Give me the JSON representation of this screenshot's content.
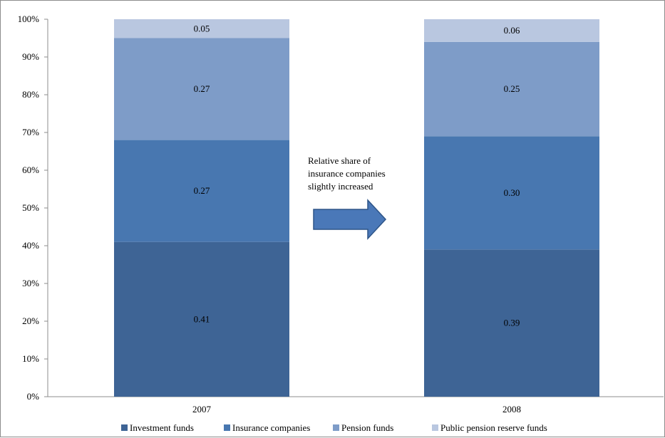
{
  "chart_data": {
    "type": "bar",
    "stacked": "percent",
    "title": "",
    "xlabel": "",
    "ylabel": "",
    "ylim": [
      0,
      100
    ],
    "yticks": [
      "0%",
      "10%",
      "20%",
      "30%",
      "40%",
      "50%",
      "60%",
      "70%",
      "80%",
      "90%",
      "100%"
    ],
    "categories": [
      "2007",
      "2008"
    ],
    "series": [
      {
        "name": "Investment funds",
        "values": [
          0.41,
          0.39
        ],
        "labels": [
          "0.41",
          "0.39"
        ],
        "color": "#3e6495"
      },
      {
        "name": "Insurance companies",
        "values": [
          0.27,
          0.3
        ],
        "labels": [
          "0.27",
          "0.30"
        ],
        "color": "#4877b0"
      },
      {
        "name": "Pension funds",
        "values": [
          0.27,
          0.25
        ],
        "labels": [
          "0.27",
          "0.25"
        ],
        "color": "#7e9cc8"
      },
      {
        "name": "Public pension reserve funds",
        "values": [
          0.05,
          0.06
        ],
        "labels": [
          "0.05",
          "0.06"
        ],
        "color": "#b9c7e0"
      }
    ],
    "annotation": {
      "lines": [
        "Relative share of",
        "insurance companies",
        "slightly increased"
      ]
    },
    "legend_position": "bottom",
    "grid": false
  }
}
